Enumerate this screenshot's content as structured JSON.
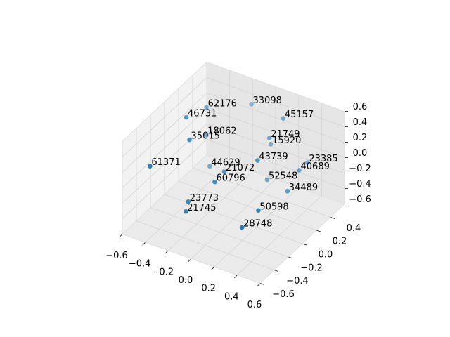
{
  "chart_data": {
    "type": "scatter3d",
    "color": "#1f77b4",
    "x": [
      -0.48,
      -0.15,
      0.25,
      -0.41,
      -0.36,
      -0.26,
      0.13,
      0.08,
      -0.42,
      -0.39,
      -0.08,
      0.21,
      0.4,
      0.45,
      -0.04,
      0.11,
      0.47,
      -0.21,
      -0.17,
      0.4,
      0.38
    ],
    "y": [
      0.4,
      0.5,
      0.3,
      0.0,
      0.2,
      -0.2,
      0.3,
      0.4,
      -0.5,
      0.3,
      0.0,
      0.0,
      0.4,
      0.2,
      -0.2,
      0.3,
      0.0,
      -0.3,
      -0.4,
      -0.3,
      -0.5
    ],
    "z": [
      0.25,
      0.38,
      0.58,
      0.5,
      0.13,
      0.46,
      0.26,
      0.07,
      0.29,
      -0.38,
      -0.03,
      0.27,
      0.0,
      0.1,
      0.03,
      -0.29,
      0.01,
      -0.23,
      -0.25,
      -0.02,
      -0.08
    ],
    "labels": [
      62176,
      33098,
      45157,
      46731,
      18062,
      35015,
      21749,
      15920,
      61371,
      44629,
      21072,
      43739,
      23385,
      40689,
      60796,
      52548,
      34489,
      23773,
      21745,
      50598,
      28748
    ],
    "xlim": [
      -0.6,
      0.6
    ],
    "ylim": [
      -0.6,
      0.6
    ],
    "zlim": [
      -0.6,
      0.6
    ],
    "xticks": [
      {
        "value": -0.6,
        "label": "−0.6"
      },
      {
        "value": -0.4,
        "label": "−0.4"
      },
      {
        "value": -0.2,
        "label": "−0.2"
      },
      {
        "value": 0,
        "label": "0.0"
      },
      0.2,
      0.4,
      0.6
    ],
    "yticks": [
      {
        "value": -0.6,
        "label": "−0.6"
      },
      {
        "value": -0.4,
        "label": "−0.4"
      },
      {
        "value": -0.2,
        "label": "−0.2"
      },
      {
        "value": 0,
        "label": "0.0"
      },
      0.2,
      0.4
    ],
    "zticks": [
      {
        "value": -0.6,
        "label": "−0.6"
      },
      {
        "value": -0.4,
        "label": "−0.4"
      },
      {
        "value": -0.2,
        "label": "−0.2"
      },
      {
        "value": 0,
        "label": "0.0"
      },
      0.2,
      0.4,
      0.6
    ],
    "grid": true
  }
}
